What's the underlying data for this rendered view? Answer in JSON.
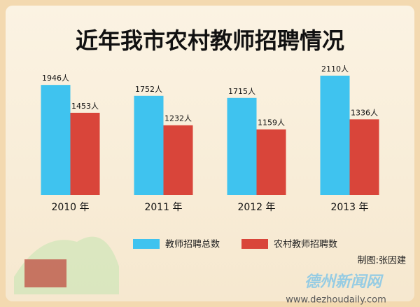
{
  "chart_data": {
    "type": "bar",
    "title": "近年我市农村教师招聘情况",
    "categories": [
      "2010 年",
      "2011 年",
      "2012 年",
      "2013 年"
    ],
    "series": [
      {
        "name": "教师招聘总数",
        "color": "#3fc3ef",
        "values": [
          1946,
          1752,
          1715,
          2110
        ],
        "value_labels": [
          "1946人",
          "1752人",
          "1715人",
          "2110人"
        ]
      },
      {
        "name": "农村教师招聘数",
        "color": "#d9453a",
        "values": [
          1453,
          1232,
          1159,
          1336
        ],
        "value_labels": [
          "1453人",
          "1232人",
          "1159人",
          "1336人"
        ]
      }
    ],
    "credit": "制图:张因建",
    "watermark": "德州新闻网",
    "url": "www.dezhoudaily.com"
  }
}
